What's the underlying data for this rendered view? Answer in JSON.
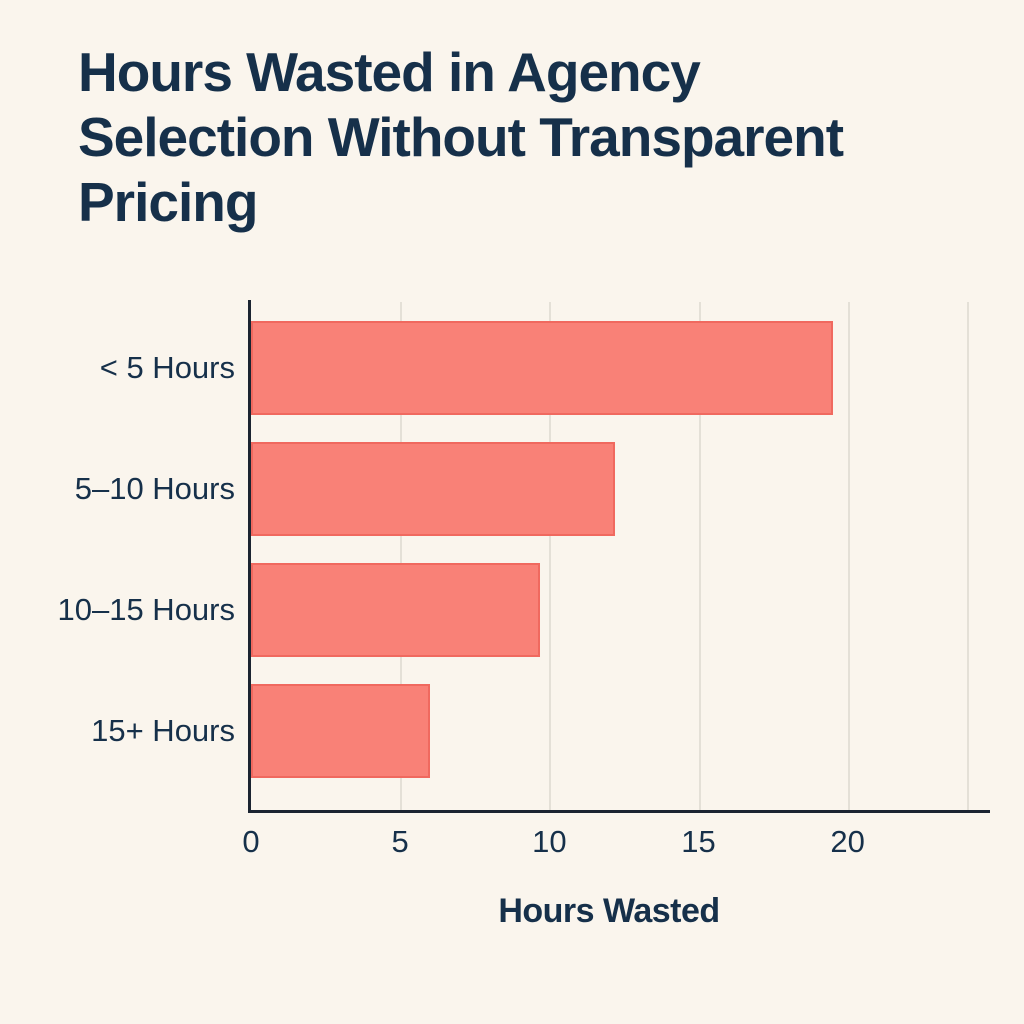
{
  "page": {
    "background_color": "#faf5ed",
    "text_color": "#16304a"
  },
  "chart_data": {
    "type": "bar",
    "orientation": "horizontal",
    "title": "Hours Wasted in Agency Selection Without Transparent Pricing",
    "xlabel": "Hours Wasted",
    "ylabel": "",
    "categories": [
      "< 5 Hours",
      "5–10 Hours",
      "10–15 Hours",
      "15+ Hours"
    ],
    "values": [
      19.5,
      12.2,
      9.7,
      6
    ],
    "xlim": [
      0,
      24
    ],
    "xticks": [
      0,
      5,
      10,
      15,
      20
    ],
    "grid": "vertical",
    "legend": "none",
    "bar_color": "#f98177",
    "bar_border_color": "#f0695f",
    "gridline_color": "#e4e0d7",
    "axis_color": "#1b2431",
    "text_color": "#16304a"
  }
}
